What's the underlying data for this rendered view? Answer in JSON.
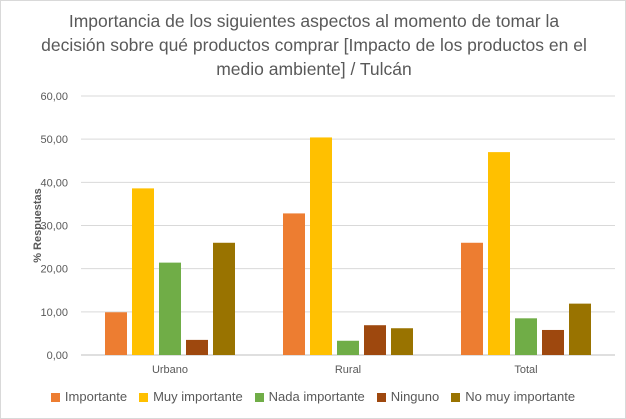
{
  "chart_data": {
    "type": "bar",
    "title": "Importancia de los siguientes aspectos al momento de tomar la decisión sobre qué productos comprar [Impacto de los productos en el medio ambiente] / Tulcán",
    "xlabel": "",
    "ylabel": "% Respuestas",
    "ylim": [
      0,
      60
    ],
    "ytick_labels": [
      "0,00",
      "10,00",
      "20,00",
      "30,00",
      "40,00",
      "50,00",
      "60,00"
    ],
    "categories": [
      "Urbano",
      "Rural",
      "Total"
    ],
    "series": [
      {
        "name": "Importante",
        "color": "#ed7d31",
        "values": [
          9.9,
          32.8,
          26.0
        ]
      },
      {
        "name": "Muy importante",
        "color": "#ffc000",
        "values": [
          38.6,
          50.4,
          47.0
        ]
      },
      {
        "name": "Nada importante",
        "color": "#70ad47",
        "values": [
          21.4,
          3.3,
          8.5
        ]
      },
      {
        "name": "Ninguno",
        "color": "#9e480e",
        "values": [
          3.5,
          6.9,
          5.8
        ]
      },
      {
        "name": "No muy importante",
        "color": "#997300",
        "values": [
          26.0,
          6.2,
          11.9
        ]
      }
    ],
    "grid": true,
    "legend_position": "bottom"
  }
}
